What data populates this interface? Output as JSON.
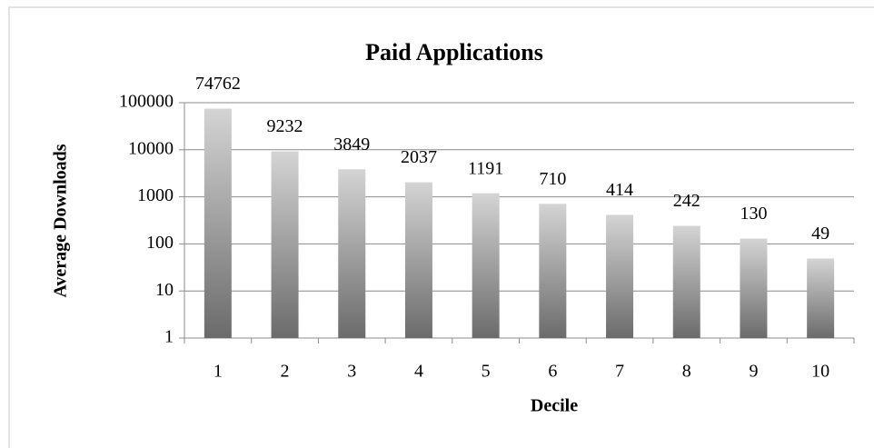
{
  "chart_data": {
    "type": "bar",
    "title": "Paid Applications",
    "x_label": "Decile",
    "y_label": "Average Downloads",
    "categories": [
      "1",
      "2",
      "3",
      "4",
      "5",
      "6",
      "7",
      "8",
      "9",
      "10"
    ],
    "values": [
      74762,
      9232,
      3849,
      2037,
      1191,
      710,
      414,
      242,
      130,
      49
    ],
    "ylim": [
      1,
      100000
    ],
    "yticks": [
      1,
      10,
      100,
      1000,
      10000,
      100000
    ],
    "log_scale": true,
    "grid": true
  }
}
